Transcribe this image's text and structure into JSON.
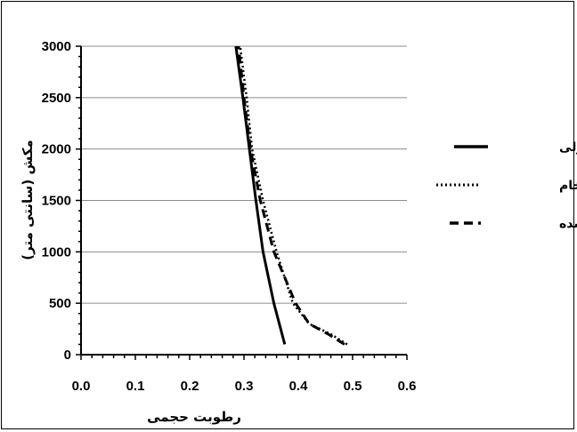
{
  "chart_data": {
    "type": "line",
    "xlabel": "رطوبت حجمی",
    "ylabel": "مکش (سانتی متر)",
    "xlim": [
      0,
      0.6
    ],
    "ylim": [
      0,
      3000
    ],
    "x_ticks": [
      "0.0",
      "0.1",
      "0.2",
      "0.3",
      "0.4",
      "0.5",
      "0.6"
    ],
    "y_ticks": [
      "0",
      "500",
      "1000",
      "1500",
      "2000",
      "2500",
      "3000"
    ],
    "grid": "horizontal",
    "legend_position": "right",
    "series": [
      {
        "name": "آب معمولی",
        "style": "solid",
        "color": "#000000",
        "points": [
          [
            0.375,
            100
          ],
          [
            0.355,
            500
          ],
          [
            0.335,
            1000
          ],
          [
            0.322,
            1500
          ],
          [
            0.31,
            2000
          ],
          [
            0.298,
            2500
          ],
          [
            0.285,
            3000
          ]
        ]
      },
      {
        "name": "فاضلاب خام",
        "style": "dotted",
        "color": "#000000",
        "points": [
          [
            0.49,
            100
          ],
          [
            0.46,
            200
          ],
          [
            0.42,
            300
          ],
          [
            0.39,
            500
          ],
          [
            0.36,
            1000
          ],
          [
            0.335,
            1500
          ],
          [
            0.315,
            2000
          ],
          [
            0.305,
            2500
          ],
          [
            0.293,
            3000
          ]
        ]
      },
      {
        "name": "فاضلاب تصفیه شده",
        "style": "dashed",
        "color": "#000000",
        "points": [
          [
            0.485,
            100
          ],
          [
            0.455,
            200
          ],
          [
            0.42,
            300
          ],
          [
            0.395,
            500
          ],
          [
            0.355,
            1000
          ],
          [
            0.33,
            1500
          ],
          [
            0.312,
            2000
          ],
          [
            0.3,
            2500
          ],
          [
            0.29,
            3000
          ]
        ]
      }
    ]
  }
}
